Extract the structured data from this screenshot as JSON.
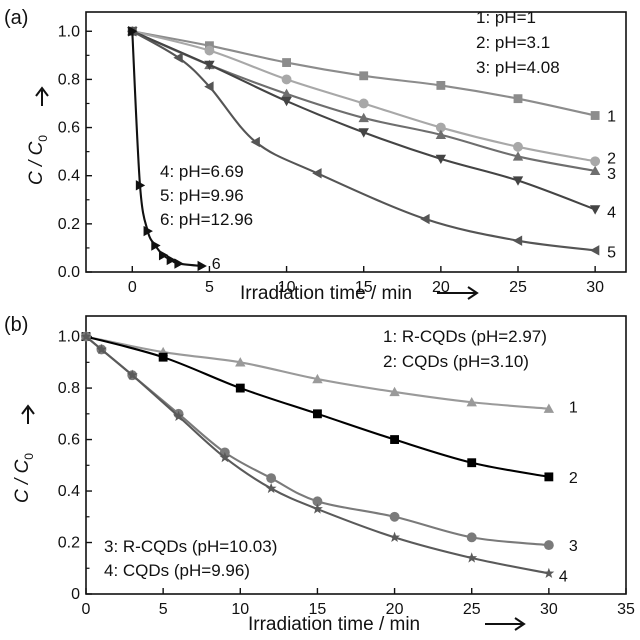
{
  "chart_data": [
    {
      "type": "line",
      "panel_label": "(a)",
      "xlabel": "Irradiation time / min",
      "ylabel_main": "C / C",
      "ylabel_sub": "0",
      "xlim": [
        -3,
        32
      ],
      "ylim": [
        0,
        1.08
      ],
      "x_ticks": [
        "0",
        "5",
        "10",
        "15",
        "20",
        "25",
        "30"
      ],
      "y_ticks": [
        "0.0",
        "0.2",
        "0.4",
        "0.6",
        "0.8",
        "1.0"
      ],
      "legend_top": [
        "1: pH=1",
        "2: pH=3.1",
        "3: pH=4.08"
      ],
      "legend_mid": [
        "4: pH=6.69",
        "5: pH=9.96",
        "6: pH=12.96"
      ],
      "colors": {
        "s1": "#8c8c8c",
        "s2": "#a8a8a8",
        "s3": "#6e6e6e",
        "s4": "#444444",
        "s5": "#555555",
        "s6": "#111111"
      },
      "series": [
        {
          "id": "1",
          "marker": "square",
          "x": [
            0,
            5,
            10,
            15,
            20,
            25,
            30
          ],
          "y": [
            1.0,
            0.94,
            0.87,
            0.815,
            0.775,
            0.72,
            0.65
          ]
        },
        {
          "id": "2",
          "marker": "circle",
          "x": [
            0,
            5,
            10,
            15,
            20,
            25,
            30
          ],
          "y": [
            1.0,
            0.92,
            0.8,
            0.7,
            0.6,
            0.52,
            0.46
          ]
        },
        {
          "id": "3",
          "marker": "triangle-up",
          "x": [
            0,
            5,
            10,
            15,
            20,
            25,
            30
          ],
          "y": [
            1.0,
            0.86,
            0.74,
            0.64,
            0.57,
            0.48,
            0.42
          ]
        },
        {
          "id": "4",
          "marker": "triangle-down",
          "x": [
            0,
            5,
            10,
            15,
            20,
            25,
            30
          ],
          "y": [
            1.0,
            0.86,
            0.71,
            0.58,
            0.47,
            0.38,
            0.26
          ]
        },
        {
          "id": "5",
          "marker": "triangle-left",
          "x": [
            0,
            3,
            5,
            8,
            12,
            19,
            25,
            30
          ],
          "y": [
            1.0,
            0.89,
            0.77,
            0.54,
            0.41,
            0.22,
            0.13,
            0.09
          ]
        },
        {
          "id": "6",
          "marker": "triangle-right",
          "x": [
            0,
            0.5,
            1,
            1.5,
            2,
            2.5,
            3,
            4.5
          ],
          "y": [
            1.0,
            0.36,
            0.17,
            0.11,
            0.07,
            0.05,
            0.035,
            0.025
          ]
        }
      ]
    },
    {
      "type": "line",
      "panel_label": "(b)",
      "xlabel": "Irradiation time / min",
      "ylabel_main": "C / C",
      "ylabel_sub": "0",
      "xlim": [
        0,
        35
      ],
      "ylim": [
        0,
        1.08
      ],
      "x_ticks": [
        "0",
        "5",
        "10",
        "15",
        "20",
        "25",
        "30",
        "35"
      ],
      "y_ticks": [
        "0",
        "0.2",
        "0.4",
        "0.6",
        "0.8",
        "1.0"
      ],
      "legend_top": [
        "1: R-CQDs (pH=2.97)",
        "2: CQDs (pH=3.10)"
      ],
      "legend_bottom": [
        "3: R-CQDs (pH=10.03)",
        "4: CQDs (pH=9.96)"
      ],
      "colors": {
        "s1": "#9a9a9a",
        "s2": "#000000",
        "s3": "#7a7a7a",
        "s4": "#5a5a5a"
      },
      "series": [
        {
          "id": "1",
          "marker": "triangle-up",
          "x": [
            0,
            5,
            10,
            15,
            20,
            25,
            30
          ],
          "y": [
            1.0,
            0.94,
            0.9,
            0.835,
            0.785,
            0.745,
            0.72
          ]
        },
        {
          "id": "2",
          "marker": "square",
          "x": [
            0,
            5,
            10,
            15,
            20,
            25,
            30
          ],
          "y": [
            1.0,
            0.92,
            0.8,
            0.7,
            0.6,
            0.51,
            0.455
          ]
        },
        {
          "id": "3",
          "marker": "circle",
          "x": [
            0,
            1,
            3,
            6,
            9,
            12,
            15,
            20,
            25,
            30
          ],
          "y": [
            1.0,
            0.95,
            0.85,
            0.7,
            0.55,
            0.45,
            0.36,
            0.3,
            0.22,
            0.19
          ]
        },
        {
          "id": "4",
          "marker": "star",
          "x": [
            0,
            1,
            3,
            6,
            9,
            12,
            15,
            20,
            25,
            30
          ],
          "y": [
            1.0,
            0.95,
            0.85,
            0.69,
            0.53,
            0.41,
            0.33,
            0.22,
            0.14,
            0.08
          ]
        }
      ]
    }
  ]
}
